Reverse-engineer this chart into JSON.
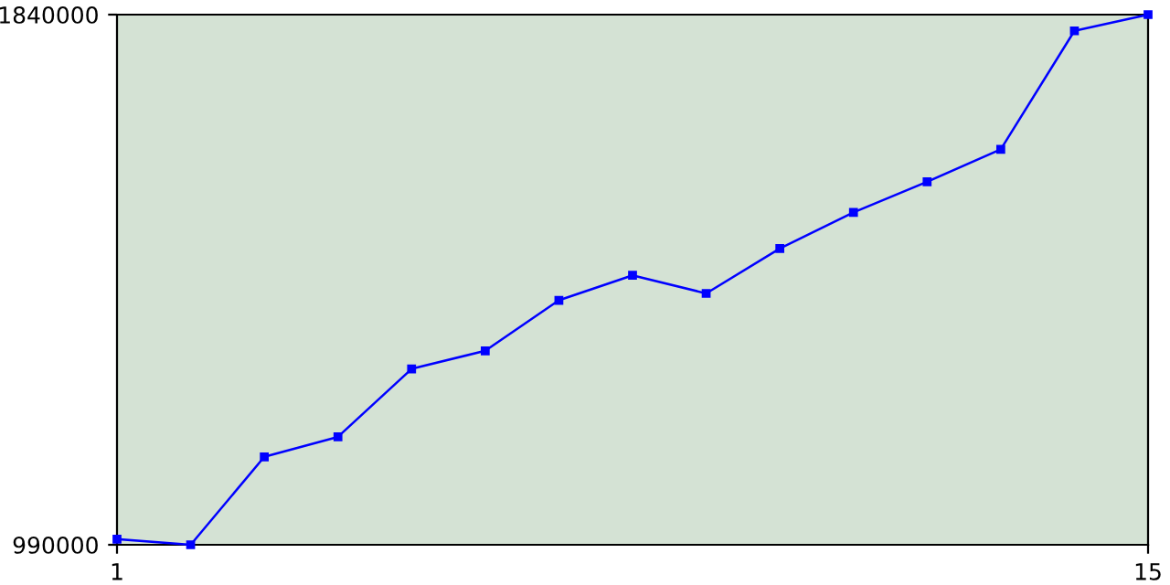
{
  "chart_data": {
    "type": "line",
    "x": [
      1,
      2,
      3,
      4,
      5,
      6,
      7,
      8,
      9,
      10,
      11,
      12,
      13,
      14,
      15
    ],
    "series": [
      {
        "color": "#0000ff",
        "values": [
          999000,
          990000,
          1131000,
          1163000,
          1272000,
          1301000,
          1382000,
          1422000,
          1393000,
          1465000,
          1523000,
          1572000,
          1624000,
          1814000,
          1840000
        ]
      }
    ],
    "xlim": [
      1,
      15
    ],
    "ylim": [
      990000,
      1840000
    ],
    "xticks": [
      1,
      15
    ],
    "yticks": [
      990000,
      1840000
    ],
    "marker": "square",
    "line_style": "solid",
    "grid": false,
    "legend": false
  }
}
